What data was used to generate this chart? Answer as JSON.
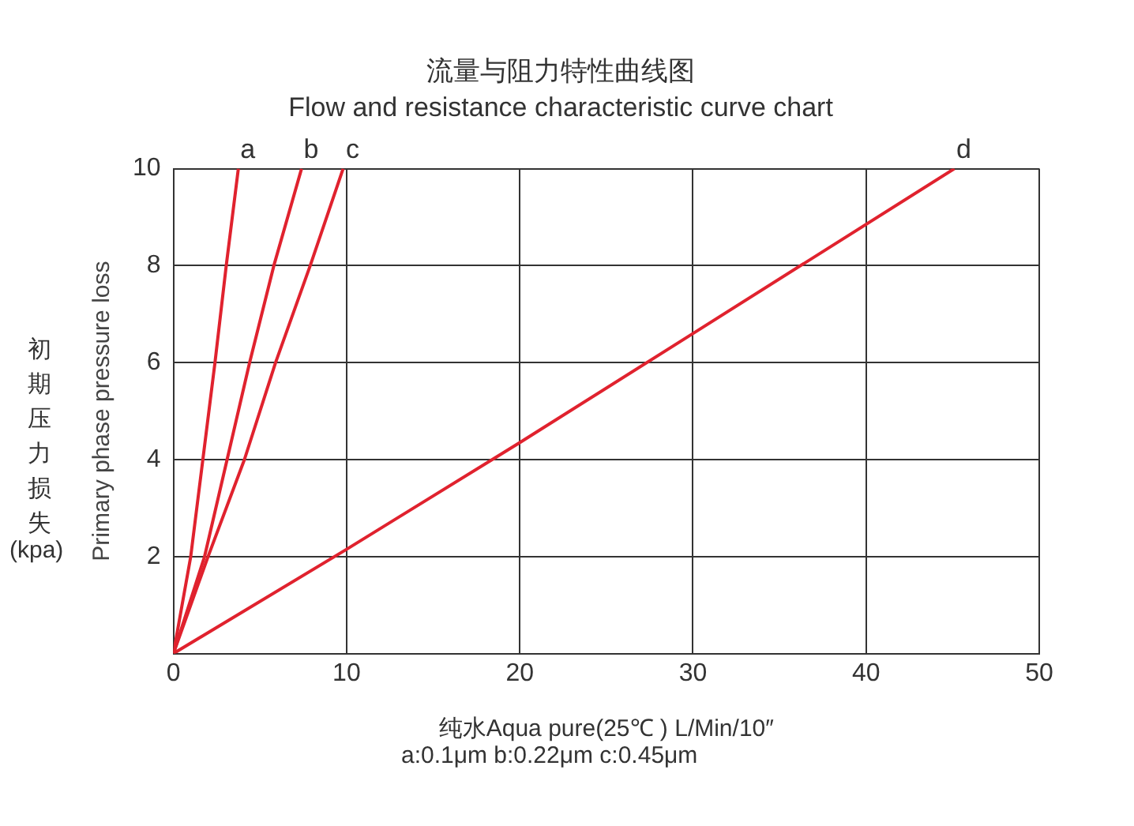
{
  "chart_data": {
    "type": "line",
    "title": "流量与阻力特性曲线图",
    "subtitle": "Flow and resistance characteristic curve chart",
    "xlabel": "纯水Aqua pure(25℃ ) L/Min/10″",
    "ylabel": "Primary phase pressure loss",
    "annotations": [
      "初期压力损失",
      "(kpa)",
      "a:0.1μm   b:0.22μm   c:0.45μm"
    ],
    "xlim": [
      0,
      50
    ],
    "xticks": [
      0,
      10,
      20,
      30,
      40,
      50
    ],
    "ylim": [
      0,
      10
    ],
    "yticks": [
      2,
      4,
      6,
      8,
      10
    ],
    "grid": true,
    "legend": false,
    "marker": "none",
    "series": [
      {
        "name": "a",
        "color": "#e0222e",
        "x": [
          0,
          1.0,
          1.7,
          2.4,
          3.05,
          3.75
        ],
        "values": [
          0,
          2,
          4,
          6,
          8,
          10
        ]
      },
      {
        "name": "b",
        "color": "#e0222e",
        "x": [
          0,
          1.8,
          3.1,
          4.4,
          5.8,
          7.4
        ],
        "values": [
          0,
          2,
          4,
          6,
          8,
          10
        ]
      },
      {
        "name": "c",
        "color": "#e0222e",
        "x": [
          0,
          2.0,
          4.1,
          5.9,
          7.9,
          9.8
        ],
        "values": [
          0,
          2,
          4,
          6,
          8,
          10
        ]
      },
      {
        "name": "d",
        "color": "#e0222e",
        "x": [
          0,
          10,
          20,
          30,
          45.1
        ],
        "values": [
          0,
          2.15,
          4.35,
          6.6,
          10
        ]
      }
    ]
  }
}
